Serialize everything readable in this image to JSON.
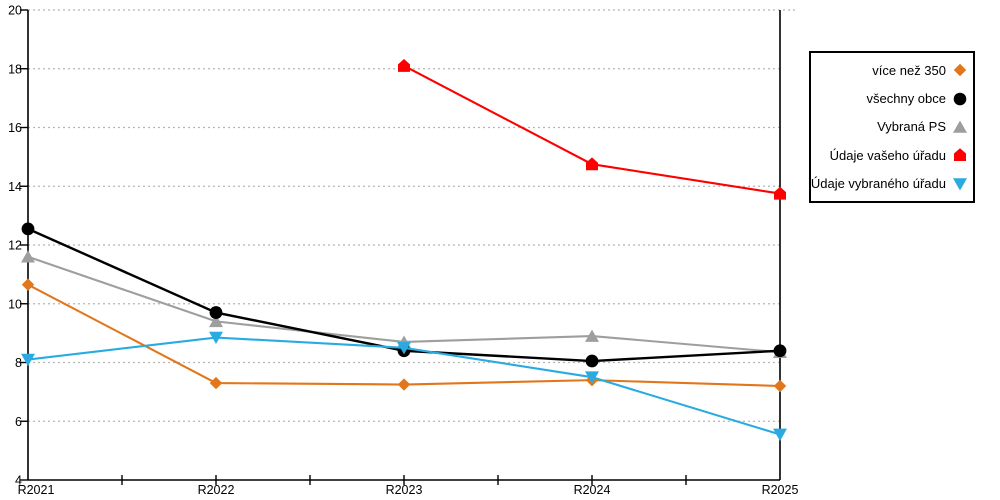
{
  "chart_data": {
    "type": "line",
    "title": "",
    "xlabel": "",
    "ylabel": "",
    "categories": [
      "R2021",
      "R2022",
      "R2023",
      "R2024",
      "R2025"
    ],
    "ylim": [
      4,
      20
    ],
    "yticks": [
      4,
      6,
      8,
      10,
      12,
      14,
      16,
      18,
      20
    ],
    "grid": "horizontal-dashed",
    "legend_position": "right-outside",
    "series": [
      {
        "name": "více než 350",
        "marker": "diamond",
        "color": "#E2761B",
        "values": [
          10.65,
          7.3,
          7.25,
          7.4,
          7.2
        ]
      },
      {
        "name": "všechny obce",
        "marker": "circle",
        "color": "#000000",
        "values": [
          12.55,
          9.7,
          8.4,
          8.05,
          8.4
        ]
      },
      {
        "name": "Vybraná PS",
        "marker": "triangle-up",
        "color": "#9E9E9E",
        "values": [
          11.6,
          9.4,
          8.7,
          8.9,
          8.35
        ]
      },
      {
        "name": "Údaje vašeho úřadu",
        "marker": "pentagon-up",
        "color": "#FF0000",
        "values": [
          null,
          null,
          18.1,
          14.75,
          13.75
        ]
      },
      {
        "name": "Údaje vybraného úřadu",
        "marker": "triangle-down",
        "color": "#29ABE2",
        "values": [
          8.1,
          8.85,
          8.5,
          7.5,
          5.55
        ]
      }
    ],
    "colors": {
      "gridline": "#B5B5B5",
      "axis": "#000000",
      "tick_label": "#000000"
    }
  }
}
